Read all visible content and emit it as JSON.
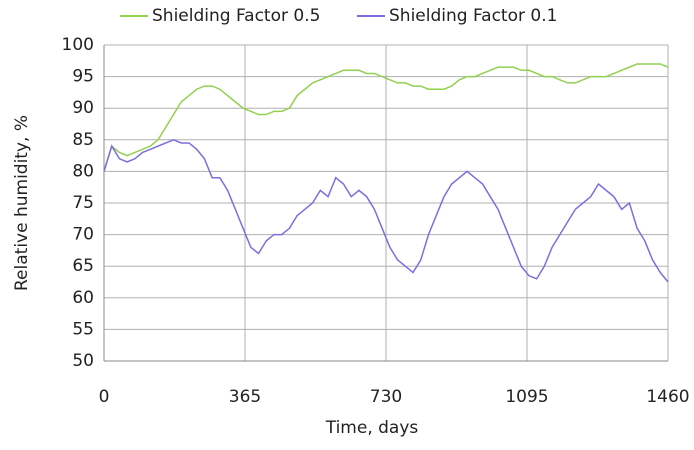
{
  "chart_data": {
    "type": "line",
    "x_label": "Time, days",
    "y_label": "Relative humidity, %",
    "x": [
      0,
      20,
      40,
      60,
      80,
      100,
      120,
      140,
      160,
      180,
      200,
      220,
      240,
      260,
      280,
      300,
      320,
      340,
      360,
      380,
      400,
      420,
      440,
      460,
      480,
      500,
      520,
      540,
      560,
      580,
      600,
      620,
      640,
      660,
      680,
      700,
      720,
      740,
      760,
      780,
      800,
      820,
      840,
      860,
      880,
      900,
      920,
      940,
      960,
      980,
      1000,
      1020,
      1040,
      1060,
      1080,
      1100,
      1120,
      1140,
      1160,
      1180,
      1200,
      1220,
      1240,
      1260,
      1280,
      1300,
      1320,
      1340,
      1360,
      1380,
      1400,
      1420,
      1440,
      1460
    ],
    "series": [
      {
        "name": "Shielding Factor 0.5",
        "color": "#92d050",
        "values": [
          80,
          84,
          83,
          82.5,
          83,
          83.5,
          84,
          85,
          87,
          89,
          91,
          92,
          93,
          93.5,
          93.5,
          93,
          92,
          91,
          90,
          89.5,
          89,
          89,
          89.5,
          89.5,
          90,
          92,
          93,
          94,
          94.5,
          95,
          95.5,
          96,
          96,
          96,
          95.5,
          95.5,
          95,
          94.5,
          94,
          94,
          93.5,
          93.5,
          93,
          93,
          93,
          93.5,
          94.5,
          95,
          95,
          95.5,
          96,
          96.5,
          96.5,
          96.5,
          96,
          96,
          95.5,
          95,
          95,
          94.5,
          94,
          94,
          94.5,
          95,
          95,
          95,
          95.5,
          96,
          96.5,
          97,
          97,
          97,
          97,
          96.5
        ]
      },
      {
        "name": "Shielding Factor 0.1",
        "color": "#7b6fe0",
        "values": [
          80,
          84,
          82,
          81.5,
          82,
          83,
          83.5,
          84,
          84.5,
          85,
          84.5,
          84.5,
          83.5,
          82,
          79,
          79,
          77,
          74,
          71,
          68,
          67,
          69,
          70,
          70,
          71,
          73,
          74,
          75,
          77,
          76,
          79,
          78,
          76,
          77,
          76,
          74,
          71,
          68,
          66,
          65,
          64,
          66,
          70,
          73,
          76,
          78,
          79,
          80,
          79,
          78,
          76,
          74,
          71,
          68,
          65,
          63.5,
          63,
          65,
          68,
          70,
          72,
          74,
          75,
          76,
          78,
          77,
          76,
          74,
          75,
          71,
          69,
          66,
          64,
          62.5
        ]
      }
    ],
    "xlim": [
      0,
      1460
    ],
    "xticks": [
      0,
      365,
      730,
      1095,
      1460
    ],
    "ylim": [
      50,
      100
    ],
    "yticks": [
      50,
      55,
      60,
      65,
      70,
      75,
      80,
      85,
      90,
      95,
      100
    ],
    "grid": true,
    "legend": "top"
  }
}
